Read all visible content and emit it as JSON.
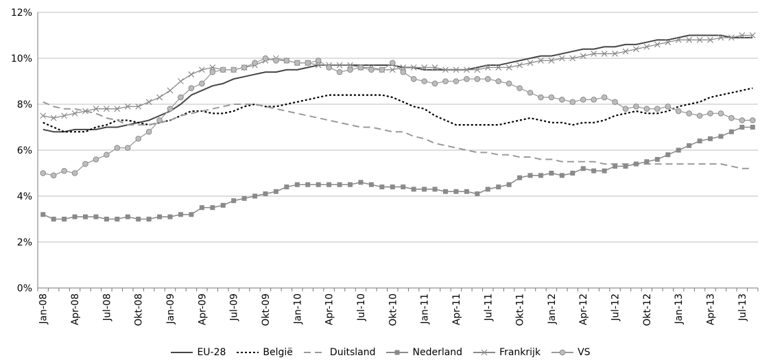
{
  "chart_data": {
    "type": "line",
    "title": "",
    "xlabel": "",
    "ylabel": "",
    "ylim": [
      0,
      12
    ],
    "y_ticks": [
      "0%",
      "2%",
      "4%",
      "6%",
      "8%",
      "10%",
      "12%"
    ],
    "y_tick_values": [
      0,
      2,
      4,
      6,
      8,
      10,
      12
    ],
    "grid": "horizontal",
    "legend_position": "bottom",
    "x_tick_labels": [
      "Jan-08",
      "Apr-08",
      "Jul-08",
      "Okt-08",
      "Jan-09",
      "Apr-09",
      "Jul-09",
      "Okt-09",
      "Jan-10",
      "Apr-10",
      "Jul-10",
      "Okt-10",
      "Jan-11",
      "Apr-11",
      "Jul-11",
      "Okt-11",
      "Jan-12",
      "Apr-12",
      "Jul-12",
      "Okt-12",
      "Jan-13",
      "Apr-13",
      "Jul-13"
    ],
    "x_tick_indices": [
      0,
      3,
      6,
      9,
      12,
      15,
      18,
      21,
      24,
      27,
      30,
      33,
      36,
      39,
      42,
      45,
      48,
      51,
      54,
      57,
      60,
      63,
      66
    ],
    "series": [
      {
        "name": "EU-28",
        "style": "solid",
        "color": "#444444",
        "values": [
          6.9,
          6.8,
          6.8,
          6.9,
          6.9,
          6.9,
          7.0,
          7.0,
          7.1,
          7.2,
          7.3,
          7.5,
          7.7,
          8.0,
          8.4,
          8.6,
          8.8,
          8.9,
          9.1,
          9.2,
          9.3,
          9.4,
          9.4,
          9.5,
          9.5,
          9.6,
          9.7,
          9.7,
          9.7,
          9.7,
          9.7,
          9.7,
          9.7,
          9.7,
          9.6,
          9.6,
          9.5,
          9.5,
          9.5,
          9.5,
          9.5,
          9.6,
          9.7,
          9.7,
          9.8,
          9.9,
          10.0,
          10.1,
          10.1,
          10.2,
          10.3,
          10.4,
          10.4,
          10.5,
          10.5,
          10.6,
          10.6,
          10.7,
          10.8,
          10.8,
          10.9,
          11.0,
          11.0,
          11.0,
          11.0,
          10.9,
          10.9,
          10.9
        ]
      },
      {
        "name": "België",
        "style": "dotted",
        "color": "#000000",
        "values": [
          7.2,
          7.0,
          6.8,
          6.8,
          6.8,
          7.0,
          7.1,
          7.3,
          7.3,
          7.2,
          7.1,
          7.2,
          7.3,
          7.5,
          7.7,
          7.7,
          7.6,
          7.6,
          7.7,
          7.9,
          8.0,
          7.9,
          7.9,
          8.0,
          8.1,
          8.2,
          8.3,
          8.4,
          8.4,
          8.4,
          8.4,
          8.4,
          8.4,
          8.3,
          8.1,
          7.9,
          7.8,
          7.5,
          7.3,
          7.1,
          7.1,
          7.1,
          7.1,
          7.1,
          7.2,
          7.3,
          7.4,
          7.3,
          7.2,
          7.2,
          7.1,
          7.2,
          7.2,
          7.3,
          7.5,
          7.6,
          7.7,
          7.6,
          7.6,
          7.7,
          7.9,
          8.0,
          8.1,
          8.3,
          8.4,
          8.5,
          8.6,
          8.7
        ]
      },
      {
        "name": "Duitsland",
        "style": "dashed",
        "color": "#999999",
        "values": [
          8.1,
          7.9,
          7.8,
          7.8,
          7.7,
          7.6,
          7.4,
          7.3,
          7.1,
          7.1,
          7.1,
          7.2,
          7.3,
          7.5,
          7.6,
          7.7,
          7.8,
          7.9,
          8.0,
          8.0,
          8.0,
          7.9,
          7.8,
          7.7,
          7.6,
          7.5,
          7.4,
          7.3,
          7.2,
          7.1,
          7.0,
          7.0,
          6.9,
          6.8,
          6.8,
          6.6,
          6.5,
          6.3,
          6.2,
          6.1,
          6.0,
          5.9,
          5.9,
          5.8,
          5.8,
          5.7,
          5.7,
          5.6,
          5.6,
          5.5,
          5.5,
          5.5,
          5.5,
          5.4,
          5.4,
          5.4,
          5.4,
          5.4,
          5.4,
          5.4,
          5.4,
          5.4,
          5.4,
          5.4,
          5.4,
          5.3,
          5.2,
          5.2
        ]
      },
      {
        "name": "Nederland",
        "style": "solid-square",
        "color": "#8a8a8a",
        "values": [
          3.2,
          3.0,
          3.0,
          3.1,
          3.1,
          3.1,
          3.0,
          3.0,
          3.1,
          3.0,
          3.0,
          3.1,
          3.1,
          3.2,
          3.2,
          3.5,
          3.5,
          3.6,
          3.8,
          3.9,
          4.0,
          4.1,
          4.2,
          4.4,
          4.5,
          4.5,
          4.5,
          4.5,
          4.5,
          4.5,
          4.6,
          4.5,
          4.4,
          4.4,
          4.4,
          4.3,
          4.3,
          4.3,
          4.2,
          4.2,
          4.2,
          4.1,
          4.3,
          4.4,
          4.5,
          4.8,
          4.9,
          4.9,
          5.0,
          4.9,
          5.0,
          5.2,
          5.1,
          5.1,
          5.3,
          5.3,
          5.4,
          5.5,
          5.6,
          5.8,
          6.0,
          6.2,
          6.4,
          6.5,
          6.6,
          6.8,
          7.0,
          7.0
        ]
      },
      {
        "name": "Frankrijk",
        "style": "solid-x",
        "color": "#888888",
        "values": [
          7.5,
          7.4,
          7.5,
          7.6,
          7.7,
          7.8,
          7.8,
          7.8,
          7.9,
          7.9,
          8.1,
          8.3,
          8.6,
          9.0,
          9.3,
          9.5,
          9.6,
          9.5,
          9.5,
          9.6,
          9.7,
          9.9,
          10.0,
          9.9,
          9.8,
          9.8,
          9.7,
          9.7,
          9.7,
          9.7,
          9.6,
          9.6,
          9.5,
          9.5,
          9.6,
          9.6,
          9.6,
          9.6,
          9.5,
          9.5,
          9.5,
          9.5,
          9.6,
          9.6,
          9.6,
          9.7,
          9.8,
          9.9,
          9.9,
          10.0,
          10.0,
          10.1,
          10.2,
          10.2,
          10.2,
          10.3,
          10.4,
          10.5,
          10.6,
          10.7,
          10.8,
          10.8,
          10.8,
          10.8,
          10.9,
          10.9,
          11.0,
          11.0
        ]
      },
      {
        "name": "VS",
        "style": "solid-circle",
        "color": "#9a9a9a",
        "values": [
          5.0,
          4.9,
          5.1,
          5.0,
          5.4,
          5.6,
          5.8,
          6.1,
          6.1,
          6.5,
          6.8,
          7.3,
          7.8,
          8.3,
          8.7,
          8.9,
          9.4,
          9.5,
          9.5,
          9.6,
          9.8,
          10.0,
          9.9,
          9.9,
          9.8,
          9.8,
          9.9,
          9.6,
          9.4,
          9.5,
          9.6,
          9.5,
          9.5,
          9.8,
          9.4,
          9.1,
          9.0,
          8.9,
          9.0,
          9.0,
          9.1,
          9.1,
          9.1,
          9.0,
          8.9,
          8.7,
          8.5,
          8.3,
          8.3,
          8.2,
          8.1,
          8.2,
          8.2,
          8.3,
          8.1,
          7.8,
          7.9,
          7.8,
          7.8,
          7.9,
          7.7,
          7.6,
          7.5,
          7.6,
          7.6,
          7.4,
          7.3,
          7.3
        ]
      }
    ]
  }
}
